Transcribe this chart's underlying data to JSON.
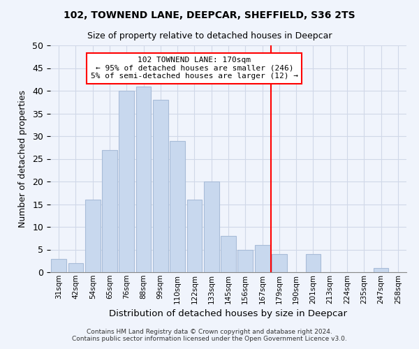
{
  "title": "102, TOWNEND LANE, DEEPCAR, SHEFFIELD, S36 2TS",
  "subtitle": "Size of property relative to detached houses in Deepcar",
  "xlabel": "Distribution of detached houses by size in Deepcar",
  "ylabel": "Number of detached properties",
  "bar_labels": [
    "31sqm",
    "42sqm",
    "54sqm",
    "65sqm",
    "76sqm",
    "88sqm",
    "99sqm",
    "110sqm",
    "122sqm",
    "133sqm",
    "145sqm",
    "156sqm",
    "167sqm",
    "179sqm",
    "190sqm",
    "201sqm",
    "213sqm",
    "224sqm",
    "235sqm",
    "247sqm",
    "258sqm"
  ],
  "bar_values": [
    3,
    2,
    16,
    27,
    40,
    41,
    38,
    29,
    16,
    20,
    8,
    5,
    6,
    4,
    0,
    4,
    0,
    0,
    0,
    1,
    0
  ],
  "bar_color": "#c8d8ee",
  "bar_edge_color": "#a8bcd8",
  "vline_x_index": 12.5,
  "vline_color": "red",
  "annotation_title": "102 TOWNEND LANE: 170sqm",
  "annotation_line1": "← 95% of detached houses are smaller (246)",
  "annotation_line2": "5% of semi-detached houses are larger (12) →",
  "annotation_box_color": "white",
  "annotation_box_edge_color": "red",
  "ylim": [
    0,
    50
  ],
  "yticks": [
    0,
    5,
    10,
    15,
    20,
    25,
    30,
    35,
    40,
    45,
    50
  ],
  "grid_color": "#d0d8e8",
  "footer": "Contains HM Land Registry data © Crown copyright and database right 2024.\nContains public sector information licensed under the Open Government Licence v3.0.",
  "bg_color": "#f0f4fc"
}
